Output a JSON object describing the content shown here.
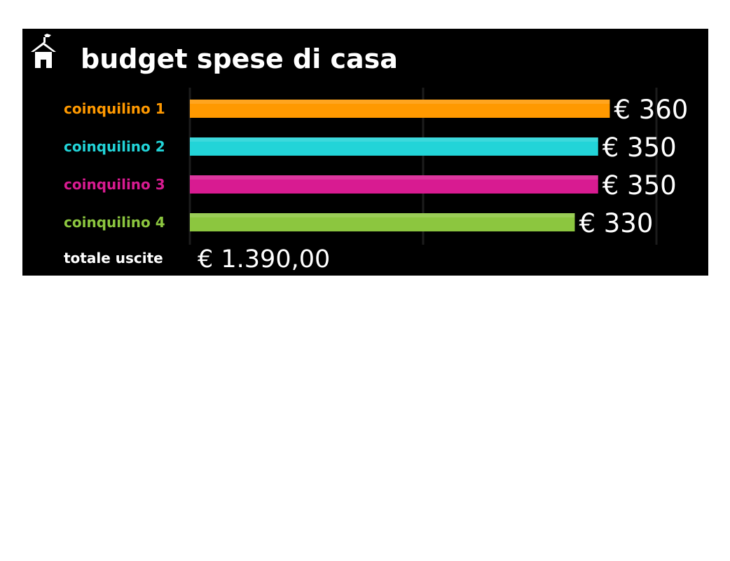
{
  "chart_data": {
    "type": "bar",
    "orientation": "horizontal",
    "title": "budget spese di casa",
    "categories": [
      "coinquilino 1",
      "coinquilino 2",
      "coinquilino 3",
      "coinquilino 4"
    ],
    "values": [
      360,
      350,
      350,
      330
    ],
    "value_labels": [
      "€ 360",
      "€ 350",
      "€ 350",
      "€ 330"
    ],
    "colors": [
      "#ff9900",
      "#22d4d8",
      "#d81b91",
      "#8cc63f"
    ],
    "xlim": [
      0,
      400
    ],
    "grid": true,
    "legend": "none",
    "total": {
      "label": "totale uscite",
      "value": "€ 1.390,00"
    }
  },
  "icons": {
    "title_icon": "house-icon"
  },
  "colors": {
    "background": "#000000",
    "text": "#ffffff"
  }
}
